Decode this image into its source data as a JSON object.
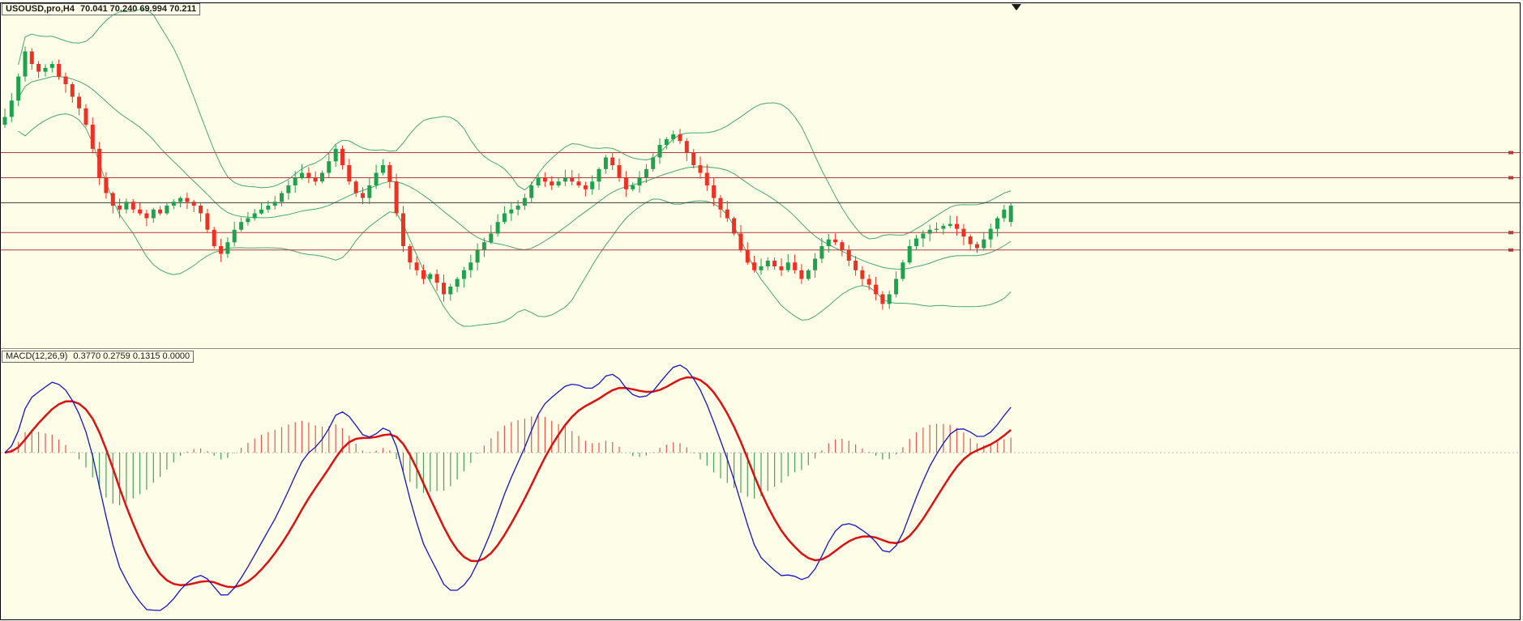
{
  "header": {
    "symbol_label": "USOUSD,pro,H4",
    "ohlc_label": "70.041 70.240 69.994 70.211"
  },
  "macd_panel": {
    "label": "MACD(12,26,9)",
    "values_label": "0.3770 0.2759 0.1315 0.0000"
  },
  "colors": {
    "background": "#fdfde8",
    "border": "#000000",
    "bull": "#1fa24e",
    "bear": "#ee3124",
    "band": "#49a86f",
    "level_red": "#b43c3c",
    "level_black": "#3c3c3c",
    "macd_hist_up": "#e8584e",
    "macd_hist_down": "#4aa15c",
    "macd_line": "#1414c8",
    "macd_signal": "#dd1111",
    "zero_level": "#b8b8b8",
    "separator": "#8f8f8f"
  },
  "chart_data": [
    {
      "type": "candlestick",
      "title": "USOUSD,pro,H4",
      "timeframe": "H4",
      "ohlc_label": "70.041 70.240 69.994 70.211",
      "last_candle": {
        "open": 70.041,
        "high": 70.24,
        "low": 69.994,
        "close": 70.211
      },
      "first_open": 71.05,
      "opens_rule": "previous_close",
      "closes": [
        71.13,
        71.3,
        71.55,
        71.81,
        71.68,
        71.6,
        71.64,
        71.68,
        71.55,
        71.47,
        71.34,
        71.22,
        71.05,
        70.8,
        70.5,
        70.34,
        70.21,
        70.17,
        70.25,
        70.17,
        70.13,
        70.08,
        70.17,
        70.13,
        70.21,
        70.25,
        70.29,
        70.25,
        70.21,
        70.13,
        69.96,
        69.79,
        69.71,
        69.83,
        69.96,
        70.04,
        70.08,
        70.13,
        70.17,
        70.21,
        70.25,
        70.34,
        70.42,
        70.5,
        70.55,
        70.5,
        70.46,
        70.55,
        70.67,
        70.8,
        70.63,
        70.46,
        70.34,
        70.29,
        70.42,
        70.55,
        70.63,
        70.46,
        70.13,
        69.79,
        69.62,
        69.54,
        69.45,
        69.5,
        69.41,
        69.29,
        69.37,
        69.45,
        69.54,
        69.62,
        69.75,
        69.83,
        69.92,
        70.04,
        70.13,
        70.17,
        70.21,
        70.29,
        70.42,
        70.5,
        70.46,
        70.42,
        70.46,
        70.5,
        70.46,
        70.42,
        70.38,
        70.46,
        70.59,
        70.71,
        70.63,
        70.5,
        70.38,
        70.42,
        70.5,
        70.59,
        70.71,
        70.84,
        70.9,
        70.95,
        70.88,
        70.76,
        70.63,
        70.55,
        70.42,
        70.29,
        70.17,
        70.08,
        69.92,
        69.75,
        69.62,
        69.54,
        69.58,
        69.64,
        69.58,
        69.54,
        69.62,
        69.54,
        69.45,
        69.54,
        69.66,
        69.79,
        69.86,
        69.83,
        69.75,
        69.64,
        69.54,
        69.45,
        69.39,
        69.29,
        69.19,
        69.29,
        69.45,
        69.62,
        69.79,
        69.87,
        69.92,
        69.96,
        69.97,
        70.0,
        70.02,
        69.97,
        69.89,
        69.81,
        69.77,
        69.86,
        69.97,
        70.08,
        70.17,
        70.211
      ],
      "bollinger": {
        "period": 20,
        "deviation": 2
      },
      "levels_red": [
        70.76,
        70.5,
        69.93,
        69.75
      ],
      "levels_black": [
        70.24
      ],
      "price_top": 72.31,
      "price_per_pixel": 0.0084,
      "grid": false,
      "legend_position": "top-left"
    },
    {
      "type": "macd",
      "label": "MACD(12,26,9)",
      "values_label": "0.3770 0.2759 0.1315 0.0000",
      "params": {
        "fast": 12,
        "slow": 26,
        "signal": 9
      },
      "current": {
        "macd": 0.377,
        "signal": 0.2759,
        "histogram": 0.1315,
        "zero": 0.0
      },
      "legend_position": "top-left"
    }
  ]
}
